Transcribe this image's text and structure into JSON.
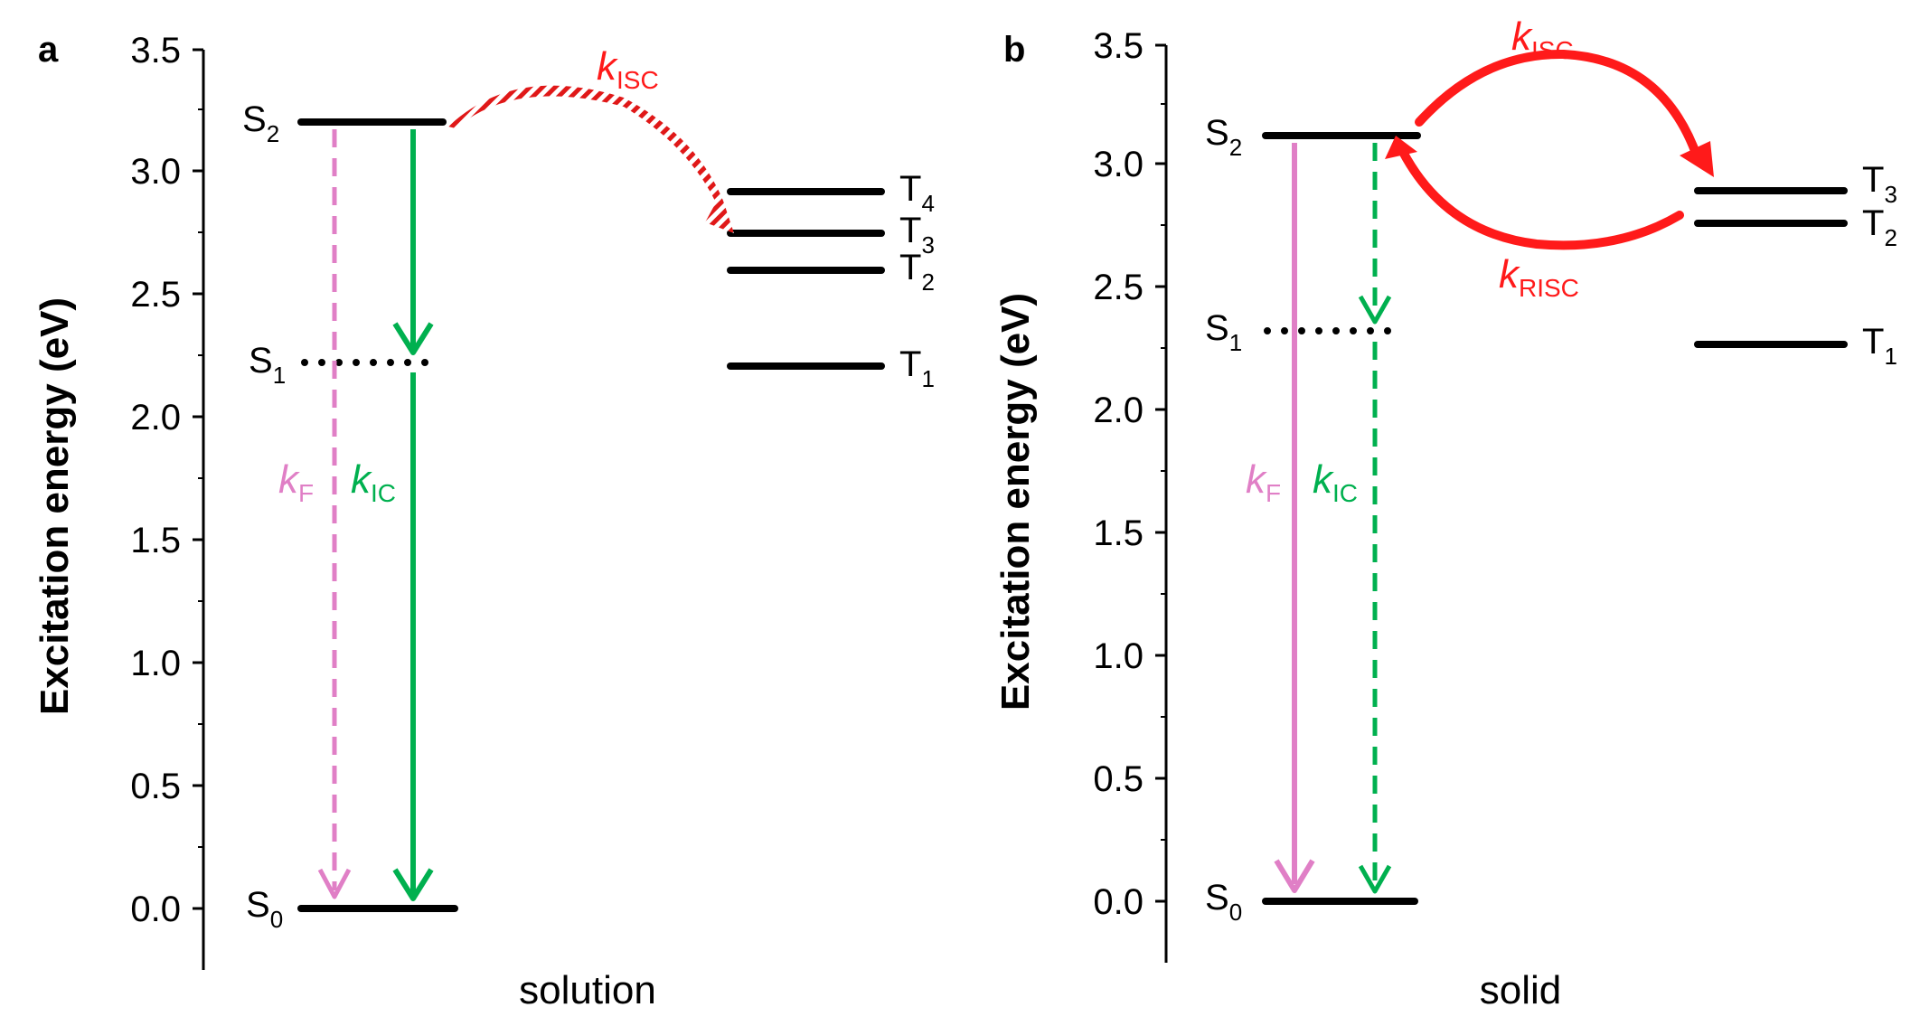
{
  "panels": [
    {
      "letter": "a",
      "ylabel": "Excitation energy (eV)",
      "xlabel": "solution",
      "ticks": [
        "0.0",
        "0.5",
        "1.0",
        "1.5",
        "2.0",
        "2.5",
        "3.0",
        "3.5"
      ],
      "levels": {
        "S0": {
          "name": "S",
          "sub": "0",
          "energy": 0.0
        },
        "S1": {
          "name": "S",
          "sub": "1",
          "energy": 2.22
        },
        "S2": {
          "name": "S",
          "sub": "2",
          "energy": 3.2
        },
        "T1": {
          "name": "T",
          "sub": "1",
          "energy": 2.21
        },
        "T2": {
          "name": "T",
          "sub": "2",
          "energy": 2.6
        },
        "T3": {
          "name": "T",
          "sub": "3",
          "energy": 2.75
        },
        "T4": {
          "name": "T",
          "sub": "4",
          "energy": 2.92
        }
      },
      "rates": {
        "kF": {
          "k": "k",
          "sub": "F",
          "style": "dashed",
          "color": "#e07fc6"
        },
        "kIC": {
          "k": "k",
          "sub": "IC",
          "style": "solid",
          "color": "#00b04f"
        },
        "kISC": {
          "k": "k",
          "sub": "ISC",
          "style": "hatched",
          "color": "#ff1a1a"
        }
      }
    },
    {
      "letter": "b",
      "ylabel": "Excitation energy (eV)",
      "xlabel": "solid",
      "ticks": [
        "0.0",
        "0.5",
        "1.0",
        "1.5",
        "2.0",
        "2.5",
        "3.0",
        "3.5"
      ],
      "levels": {
        "S0": {
          "name": "S",
          "sub": "0",
          "energy": 0.0
        },
        "S1": {
          "name": "S",
          "sub": "1",
          "energy": 2.32
        },
        "S2": {
          "name": "S",
          "sub": "2",
          "energy": 3.11
        },
        "T1": {
          "name": "T",
          "sub": "1",
          "energy": 2.27
        },
        "T2": {
          "name": "T",
          "sub": "2",
          "energy": 2.76
        },
        "T3": {
          "name": "T",
          "sub": "3",
          "energy": 2.89
        }
      },
      "rates": {
        "kF": {
          "k": "k",
          "sub": "F",
          "style": "solid",
          "color": "#e07fc6"
        },
        "kIC": {
          "k": "k",
          "sub": "IC",
          "style": "dashed",
          "color": "#00b04f"
        },
        "kISC": {
          "k": "k",
          "sub": "ISC",
          "style": "solid",
          "color": "#ff1a1a"
        },
        "kRISC": {
          "k": "k",
          "sub": "RISC",
          "style": "solid",
          "color": "#ff1a1a"
        }
      }
    }
  ]
}
